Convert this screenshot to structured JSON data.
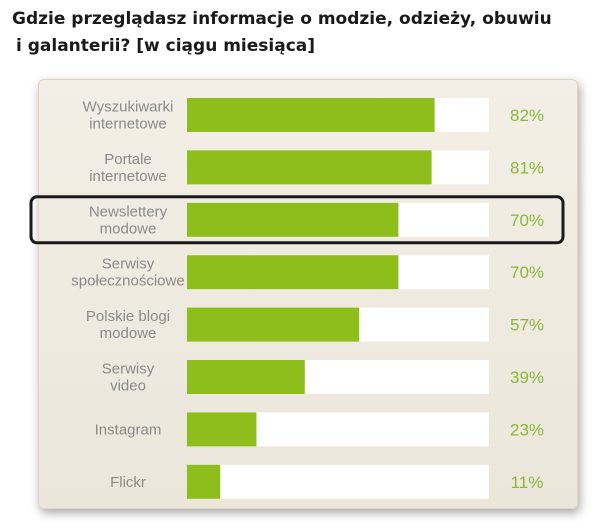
{
  "title": {
    "line1": "Gdzie przeglądasz informacje o modzie, odzieży, obuwiu",
    "line2": "i galanterii? [w ciągu miesiąca]"
  },
  "colors": {
    "bar": "#8dbe1c",
    "track": "#ffffff",
    "value_text": "#8bb73a",
    "label_text": "#8a8a8a",
    "highlight_border": "#1a1a1a"
  },
  "chart_data": {
    "type": "bar",
    "orientation": "horizontal",
    "title": "Gdzie przeglądasz informacje o modzie, odzieży, obuwiu i galanterii? [w ciągu miesiąca]",
    "categories": [
      [
        "Wyszukiwarki",
        "internetowe"
      ],
      [
        "Portale",
        "internetowe"
      ],
      [
        "Newslettery",
        "modowe"
      ],
      [
        "Serwisy",
        "społecznościowe"
      ],
      [
        "Polskie blogi",
        "modowe"
      ],
      [
        "Serwisy",
        "video"
      ],
      [
        "Instagram"
      ],
      [
        "Flickr"
      ]
    ],
    "values": [
      82,
      81,
      70,
      70,
      57,
      39,
      23,
      11
    ],
    "value_labels": [
      "82%",
      "81%",
      "70%",
      "70%",
      "57%",
      "39%",
      "23%",
      "11%"
    ],
    "xlim": [
      0,
      100
    ],
    "highlighted_category_index": 2,
    "grid": false,
    "legend": "none"
  }
}
